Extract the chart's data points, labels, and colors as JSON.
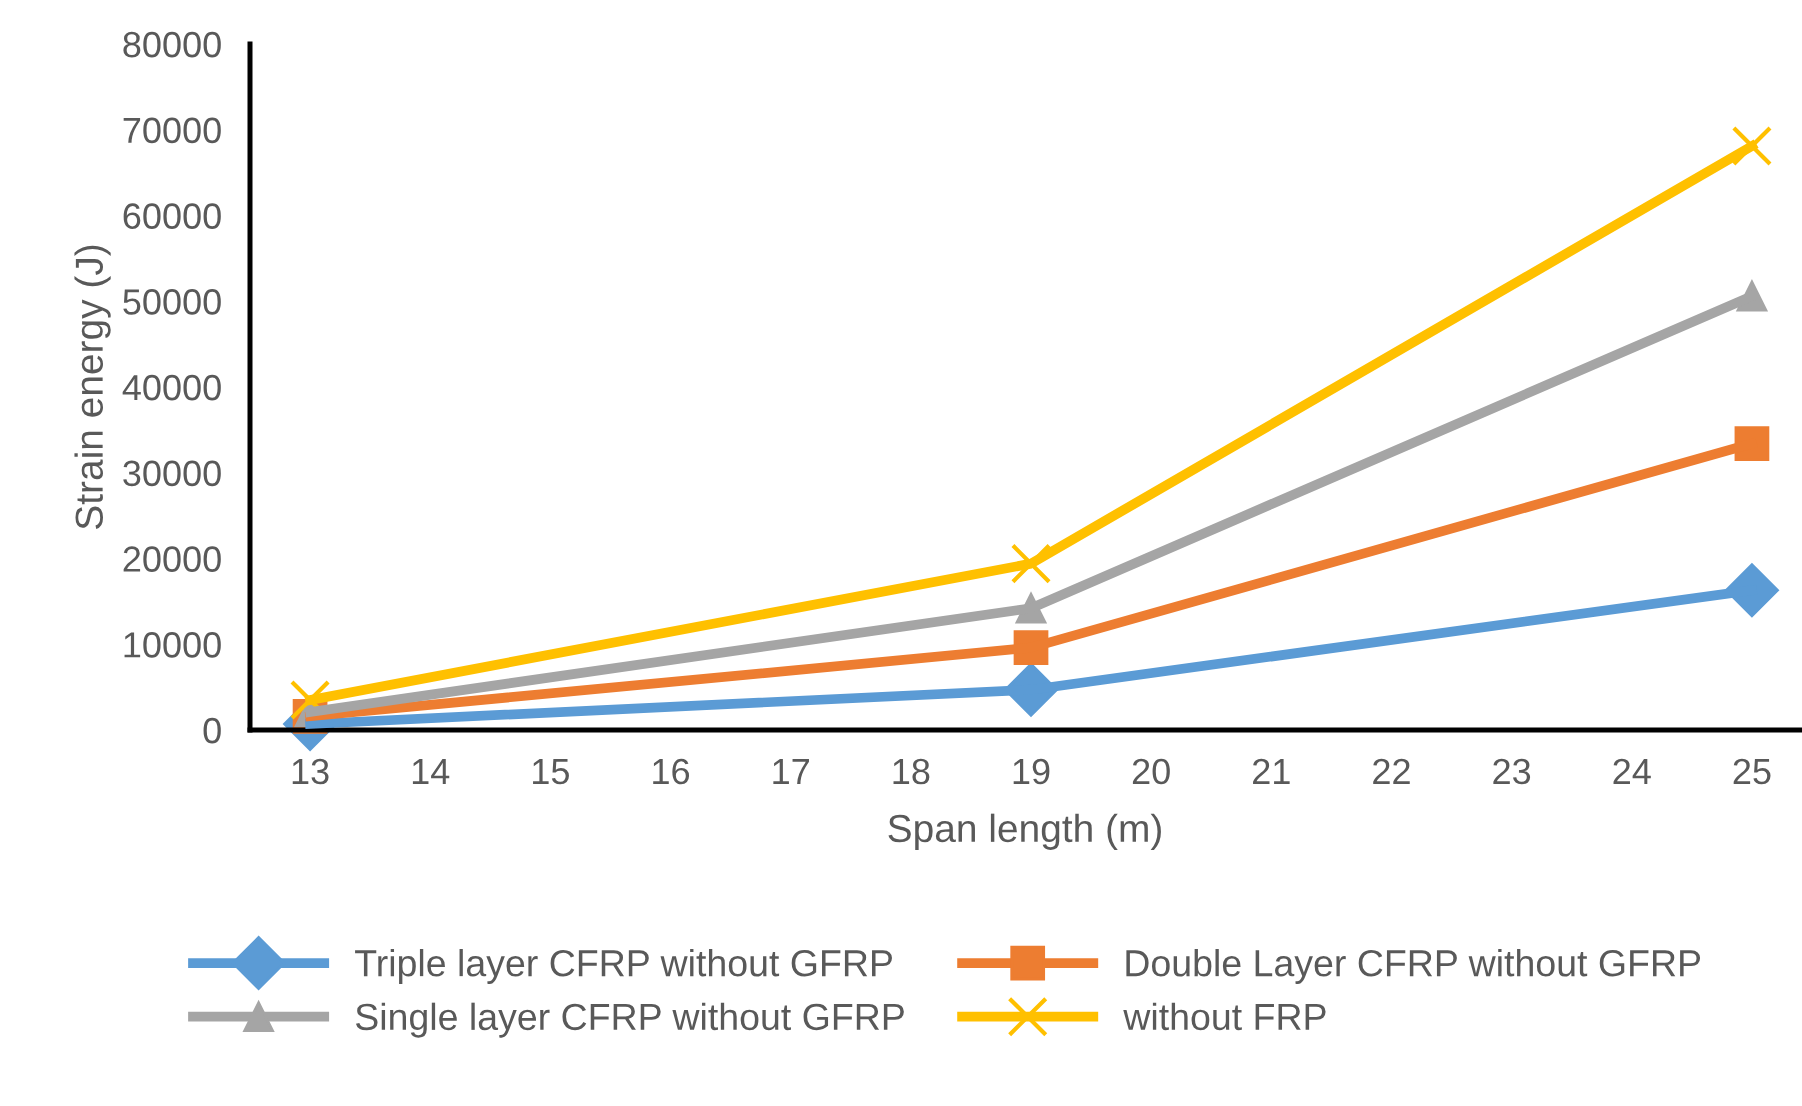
{
  "chart_data": {
    "type": "line",
    "xlabel": "Span length (m)",
    "ylabel": "Strain energy (J)",
    "x": [
      13,
      19,
      25
    ],
    "series": [
      {
        "name": "Triple layer CFRP without GFRP",
        "color": "#5b9bd5",
        "marker": "diamond",
        "values": [
          700,
          4700,
          16300
        ]
      },
      {
        "name": "Double Layer CFRP without GFRP",
        "color": "#ed7d31",
        "marker": "square",
        "values": [
          1600,
          9600,
          33400
        ]
      },
      {
        "name": "Single layer CFRP without GFRP",
        "color": "#a5a5a5",
        "marker": "triangle",
        "values": [
          2100,
          14200,
          50600
        ]
      },
      {
        "name": "without FRP",
        "color": "#ffc000",
        "marker": "cross",
        "values": [
          3500,
          19400,
          68100
        ]
      }
    ],
    "xlim": [
      12.5,
      25.4
    ],
    "xticks": [
      13,
      14,
      15,
      16,
      17,
      18,
      19,
      20,
      21,
      22,
      23,
      24,
      25
    ],
    "ylim": [
      0,
      80000
    ],
    "yticks": [
      0,
      10000,
      20000,
      30000,
      40000,
      50000,
      60000,
      70000,
      80000
    ],
    "grid": false,
    "legend": "bottom",
    "line_style": "solid"
  }
}
